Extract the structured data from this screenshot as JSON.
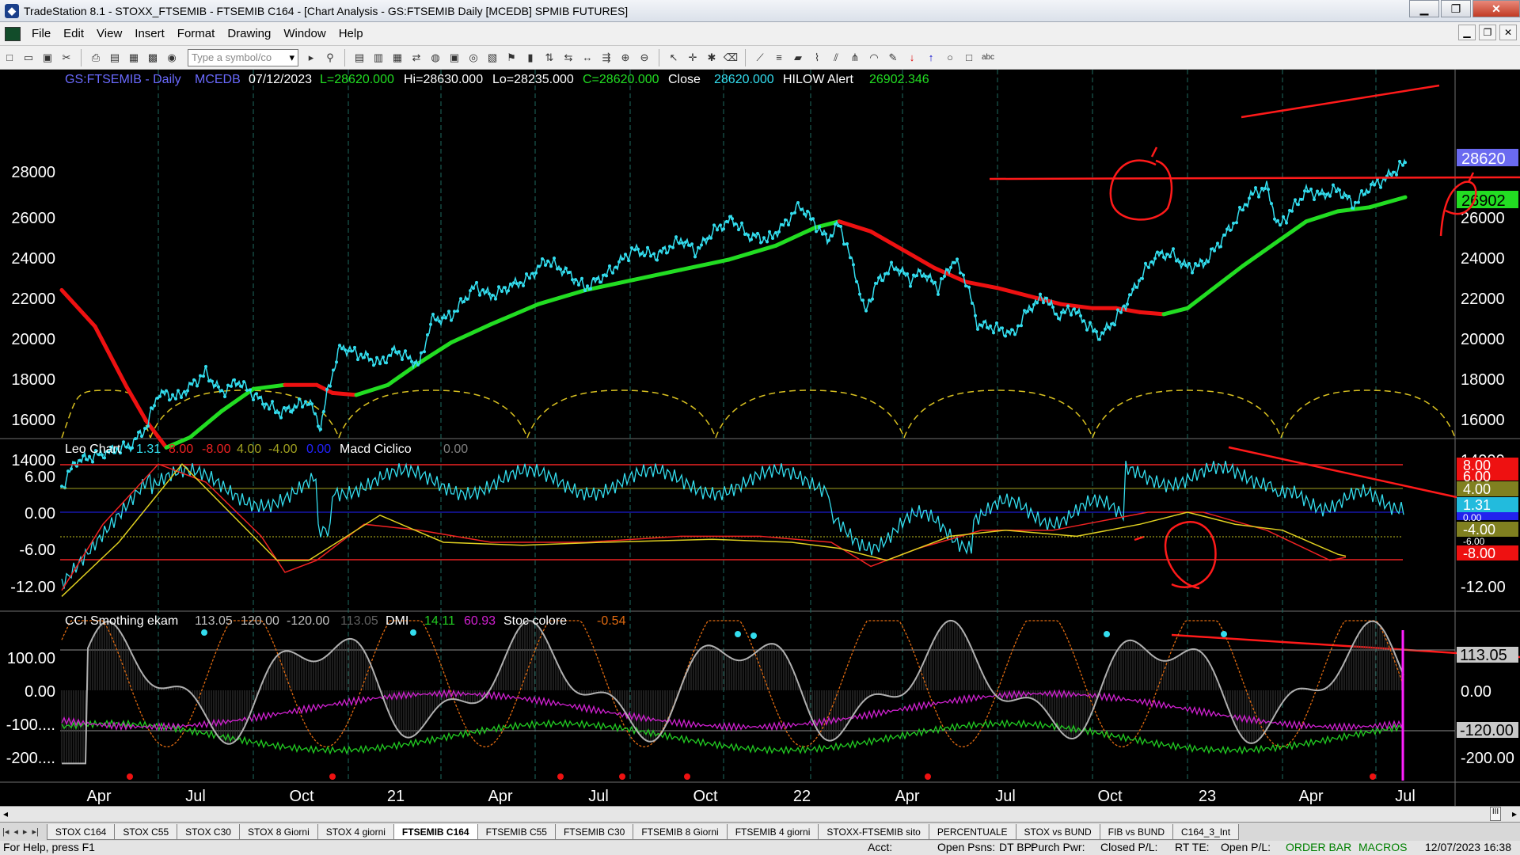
{
  "window": {
    "title": "TradeStation 8.1 - STOXX_FTSEMIB - FTSEMIB C164 - [Chart Analysis - GS:FTSEMIB  Daily  [MCEDB] SPMIB FUTURES]",
    "controls": [
      "▁",
      "❐",
      "✕"
    ],
    "mdi_controls": [
      "▁",
      "❐",
      "✕"
    ]
  },
  "menu": [
    "File",
    "Edit",
    "View",
    "Insert",
    "Format",
    "Drawing",
    "Window",
    "Help"
  ],
  "toolbar": {
    "symbol_placeholder": "Type a symbol/co"
  },
  "price_pane": {
    "header": {
      "symbol": "GS:FTSEMIB - Daily",
      "source": "MCEDB",
      "date": "07/12/2023",
      "last": "L=28620.000",
      "hi": "Hi=28630.000",
      "lo": "Lo=28235.000",
      "close_eq": "C=28620.000",
      "close_label": "Close",
      "close_val": "28620.000",
      "alert_label": "HILOW Alert",
      "alert_val": "26902.346"
    },
    "y_ticks": [
      "28000",
      "26000",
      "24000",
      "22000",
      "20000",
      "18000",
      "16000",
      "14000"
    ],
    "right_ticks": [
      "26000",
      "24000",
      "22000",
      "20000",
      "18000",
      "16000",
      "14000"
    ],
    "badge_top": "28620",
    "badge_green": "26902",
    "colors": {
      "price": "#33ddee",
      "ma_up": "#22dd22",
      "ma_down": "#ee1111",
      "cycle": "#d8c020",
      "annotation": "#ff1a1a"
    }
  },
  "leo_pane": {
    "header": {
      "name": "Leo Chart",
      "v1": "1.31",
      "v2": "8.00",
      "v3": "-8.00",
      "v4": "4.00",
      "v5": "-4.00",
      "v6": "0.00",
      "macd_label": "Macd Ciclico",
      "macd_val": "0.00"
    },
    "y_ticks": [
      "6.00",
      "0.00",
      "-6.00",
      "-12.00"
    ],
    "right_ticks": [
      "-12.00"
    ],
    "badges": [
      "8.00",
      "6.00",
      "4.00",
      "1.31",
      "0.00",
      "-4.00",
      "-6.00",
      "-8.00"
    ]
  },
  "cci_pane": {
    "header": {
      "name": "CCI Smothing ekam",
      "v1": "113.05",
      "v2": "120.00",
      "v3": "-120.00",
      "v4": "113.05",
      "dmi_label": "DMI",
      "dmi1": "14.11",
      "dmi2": "60.93",
      "stoc_label": "Stoc colore",
      "stoc_val": "-0.54"
    },
    "y_ticks": [
      "100.00",
      "0.00",
      "-100....",
      "-200...."
    ],
    "right_ticks": [
      "0.00",
      "-200.00"
    ],
    "badges": [
      "113.05",
      "-120.00"
    ]
  },
  "x_axis": [
    "Apr",
    "Jul",
    "Oct",
    "21",
    "Apr",
    "Jul",
    "Oct",
    "22",
    "Apr",
    "Jul",
    "Oct",
    "23",
    "Apr",
    "Jul"
  ],
  "hscroll": {
    "left": "◂",
    "right": "▸",
    "grip": "III"
  },
  "tabs": {
    "nav": [
      "|◂",
      "◂",
      "▸",
      "▸|"
    ],
    "items": [
      "STOX C164",
      "STOX C55",
      "STOX  C30",
      "STOX  8 Giorni",
      "STOX 4 giorni",
      "FTSEMIB C164",
      "FTSEMIB C55",
      "FTSEMIB C30",
      "FTSEMIB  8 Giorni",
      "FTSEMIB  4 giorni",
      "STOXX-FTSEMIB sito",
      "PERCENTUALE",
      "STOX vs BUND",
      "FIB vs BUND",
      "C164_3_Int"
    ],
    "active": 5
  },
  "status": {
    "help": "For Help, press F1",
    "acct": "Acct:",
    "open_psns": "Open Psns:",
    "dt_bp": "DT BP:",
    "purch_pwr": "Purch Pwr:",
    "closed_pl": "Closed P/L:",
    "rt_te": "RT TE:",
    "open_pl": "Open P/L:",
    "order_bar": "ORDER BAR",
    "macros": "MACROS",
    "datetime": "12/07/2023 16:38"
  }
}
